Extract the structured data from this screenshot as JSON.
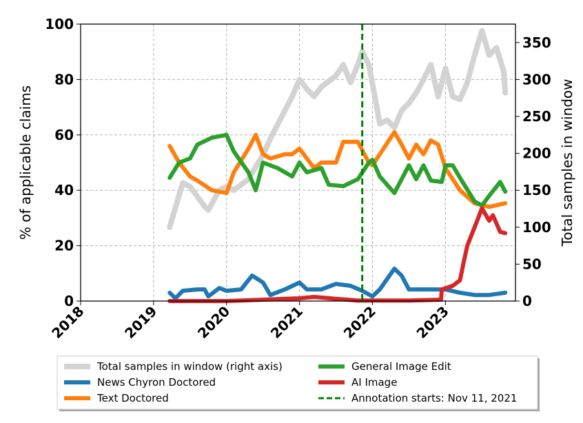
{
  "chart_data": {
    "type": "line",
    "title": "",
    "xlabel": "",
    "ylabel": "% of applicable claims",
    "ylabel_right": "Total samples in window",
    "xlim": [
      2018,
      2023.96
    ],
    "ylim": [
      0,
      100
    ],
    "ylim_right": [
      0,
      375
    ],
    "xticks": [
      "2018",
      "2019",
      "2020",
      "2021",
      "2022",
      "2023"
    ],
    "xtick_values": [
      2018,
      2019,
      2020,
      2021,
      2022,
      2023
    ],
    "yticks": [
      "0",
      "20",
      "40",
      "60",
      "80",
      "100"
    ],
    "ytick_values": [
      0,
      20,
      40,
      60,
      80,
      100
    ],
    "yticks_right": [
      "0",
      "50",
      "100",
      "150",
      "200",
      "250",
      "300",
      "350"
    ],
    "ytick_right_values": [
      0,
      50,
      100,
      150,
      200,
      250,
      300,
      350
    ],
    "grid": true,
    "legend_placement": "below",
    "annotation": {
      "x": 2021.86,
      "label": "Annotation starts: Nov 11, 2021",
      "color": "#008000",
      "style": "dashed"
    },
    "series": [
      {
        "name": "Total samples in window (right axis)",
        "axis": "right",
        "color": "#d3d3d3",
        "x": [
          2019.22,
          2019.4,
          2019.5,
          2019.7,
          2019.75,
          2019.9,
          2020.0,
          2020.1,
          2020.3,
          2020.5,
          2020.6,
          2020.8,
          2020.9,
          2021.0,
          2021.1,
          2021.2,
          2021.3,
          2021.5,
          2021.6,
          2021.7,
          2021.8,
          2021.86,
          2021.95,
          2022.05,
          2022.1,
          2022.2,
          2022.3,
          2022.4,
          2022.5,
          2022.6,
          2022.7,
          2022.8,
          2022.9,
          2023.0,
          2023.1,
          2023.2,
          2023.3,
          2023.4,
          2023.5,
          2023.6,
          2023.7,
          2023.8,
          2023.82
        ],
        "values": [
          100,
          160,
          155,
          128,
          123,
          150,
          155,
          150,
          165,
          198,
          220,
          258,
          277,
          300,
          287,
          277,
          290,
          305,
          320,
          296,
          320,
          338,
          320,
          268,
          240,
          245,
          235,
          258,
          268,
          282,
          300,
          320,
          277,
          315,
          277,
          273,
          296,
          333,
          366,
          333,
          343,
          310,
          282
        ]
      },
      {
        "name": "News Chyron Doctored",
        "axis": "left",
        "color": "#1f77b4",
        "x": [
          2019.22,
          2019.3,
          2019.4,
          2019.6,
          2019.7,
          2019.75,
          2019.9,
          2020.0,
          2020.2,
          2020.35,
          2020.5,
          2020.6,
          2020.8,
          2021.0,
          2021.1,
          2021.3,
          2021.5,
          2021.7,
          2021.86,
          2022.0,
          2022.1,
          2022.3,
          2022.4,
          2022.5,
          2022.7,
          2022.9,
          2023.0,
          2023.2,
          2023.4,
          2023.6,
          2023.82
        ],
        "values": [
          3,
          1,
          3.7,
          4.2,
          4.2,
          1.7,
          4.7,
          3.7,
          4.2,
          9.2,
          6.7,
          2.2,
          4.2,
          6.7,
          4.2,
          4.2,
          6.2,
          5.5,
          3.7,
          1.7,
          4.2,
          11.7,
          9.2,
          4.2,
          4.2,
          4.2,
          4.2,
          3,
          2.2,
          2.2,
          3
        ]
      },
      {
        "name": "Text Doctored",
        "axis": "left",
        "color": "#ff7f0e",
        "x": [
          2019.22,
          2019.35,
          2019.5,
          2019.6,
          2019.8,
          2020.0,
          2020.1,
          2020.3,
          2020.4,
          2020.5,
          2020.6,
          2020.8,
          2020.9,
          2021.0,
          2021.2,
          2021.3,
          2021.5,
          2021.6,
          2021.8,
          2021.95,
          2022.0,
          2022.1,
          2022.3,
          2022.4,
          2022.5,
          2022.6,
          2022.7,
          2022.8,
          2022.9,
          2023.0,
          2023.2,
          2023.4,
          2023.6,
          2023.82
        ],
        "values": [
          56,
          50,
          45,
          43.5,
          40,
          39,
          46.5,
          55,
          60,
          53,
          51.5,
          53,
          53,
          55,
          48,
          50,
          50,
          57.5,
          57.5,
          50,
          49,
          53,
          61,
          56.5,
          51.5,
          56.5,
          53,
          58,
          56.5,
          48,
          40,
          35.3,
          34,
          35.3
        ]
      },
      {
        "name": "General Image Edit",
        "axis": "left",
        "color": "#2ca02c",
        "x": [
          2019.22,
          2019.35,
          2019.5,
          2019.6,
          2019.8,
          2020.0,
          2020.1,
          2020.3,
          2020.4,
          2020.5,
          2020.7,
          2020.9,
          2021.0,
          2021.1,
          2021.3,
          2021.4,
          2021.6,
          2021.8,
          2021.95,
          2022.0,
          2022.1,
          2022.3,
          2022.4,
          2022.5,
          2022.6,
          2022.7,
          2022.8,
          2022.95,
          2023.0,
          2023.1,
          2023.2,
          2023.4,
          2023.5,
          2023.6,
          2023.75,
          2023.82
        ],
        "values": [
          44.5,
          50,
          51.5,
          56.5,
          59,
          60,
          54,
          46.5,
          40,
          50,
          48,
          45,
          50,
          46.5,
          48,
          42,
          41.5,
          44,
          50,
          51,
          45,
          39,
          44,
          49,
          44,
          49,
          43.5,
          43,
          49,
          49,
          44.5,
          36,
          34.5,
          38,
          43,
          39.5
        ]
      },
      {
        "name": "AI Image",
        "axis": "left",
        "color": "#d62728",
        "x": [
          2019.22,
          2020.0,
          2020.5,
          2021.0,
          2021.2,
          2021.5,
          2021.8,
          2022.5,
          2022.94,
          2022.95,
          2023.1,
          2023.2,
          2023.25,
          2023.3,
          2023.45,
          2023.5,
          2023.6,
          2023.65,
          2023.75,
          2023.82
        ],
        "values": [
          0,
          0,
          0.5,
          1,
          1.5,
          0.8,
          0.2,
          0.2,
          0.5,
          4.2,
          5.5,
          7.5,
          14,
          20,
          30,
          33.5,
          29,
          31,
          25,
          24.5
        ]
      }
    ]
  }
}
